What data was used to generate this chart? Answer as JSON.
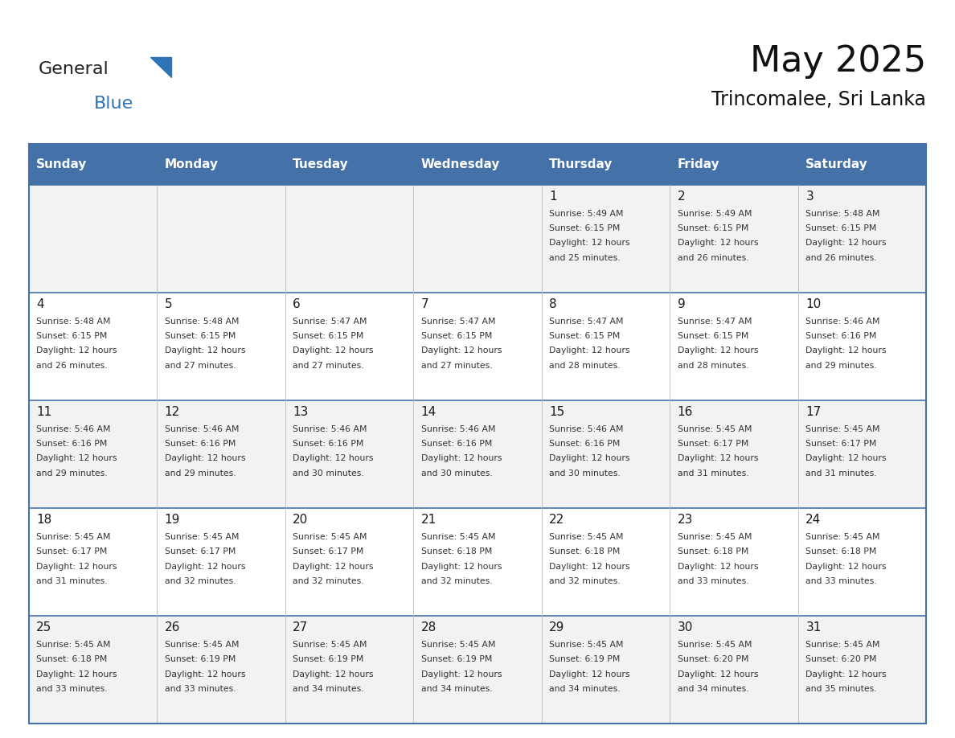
{
  "title": "May 2025",
  "subtitle": "Trincomalee, Sri Lanka",
  "days_of_week": [
    "Sunday",
    "Monday",
    "Tuesday",
    "Wednesday",
    "Thursday",
    "Friday",
    "Saturday"
  ],
  "header_bg": "#4472a8",
  "header_text": "#ffffff",
  "cell_bg_odd": "#f2f2f2",
  "cell_bg_even": "#ffffff",
  "cell_text": "#333333",
  "day_num_color": "#1a1a1a",
  "divider_color": "#4472a8",
  "logo_general_color": "#222222",
  "logo_blue_color": "#2e75b6",
  "calendar_data": [
    {
      "day": 1,
      "col": 4,
      "row": 0,
      "sunrise": "5:49 AM",
      "sunset": "6:15 PM",
      "daylight": "12 hours and 25 minutes."
    },
    {
      "day": 2,
      "col": 5,
      "row": 0,
      "sunrise": "5:49 AM",
      "sunset": "6:15 PM",
      "daylight": "12 hours and 26 minutes."
    },
    {
      "day": 3,
      "col": 6,
      "row": 0,
      "sunrise": "5:48 AM",
      "sunset": "6:15 PM",
      "daylight": "12 hours and 26 minutes."
    },
    {
      "day": 4,
      "col": 0,
      "row": 1,
      "sunrise": "5:48 AM",
      "sunset": "6:15 PM",
      "daylight": "12 hours and 26 minutes."
    },
    {
      "day": 5,
      "col": 1,
      "row": 1,
      "sunrise": "5:48 AM",
      "sunset": "6:15 PM",
      "daylight": "12 hours and 27 minutes."
    },
    {
      "day": 6,
      "col": 2,
      "row": 1,
      "sunrise": "5:47 AM",
      "sunset": "6:15 PM",
      "daylight": "12 hours and 27 minutes."
    },
    {
      "day": 7,
      "col": 3,
      "row": 1,
      "sunrise": "5:47 AM",
      "sunset": "6:15 PM",
      "daylight": "12 hours and 27 minutes."
    },
    {
      "day": 8,
      "col": 4,
      "row": 1,
      "sunrise": "5:47 AM",
      "sunset": "6:15 PM",
      "daylight": "12 hours and 28 minutes."
    },
    {
      "day": 9,
      "col": 5,
      "row": 1,
      "sunrise": "5:47 AM",
      "sunset": "6:15 PM",
      "daylight": "12 hours and 28 minutes."
    },
    {
      "day": 10,
      "col": 6,
      "row": 1,
      "sunrise": "5:46 AM",
      "sunset": "6:16 PM",
      "daylight": "12 hours and 29 minutes."
    },
    {
      "day": 11,
      "col": 0,
      "row": 2,
      "sunrise": "5:46 AM",
      "sunset": "6:16 PM",
      "daylight": "12 hours and 29 minutes."
    },
    {
      "day": 12,
      "col": 1,
      "row": 2,
      "sunrise": "5:46 AM",
      "sunset": "6:16 PM",
      "daylight": "12 hours and 29 minutes."
    },
    {
      "day": 13,
      "col": 2,
      "row": 2,
      "sunrise": "5:46 AM",
      "sunset": "6:16 PM",
      "daylight": "12 hours and 30 minutes."
    },
    {
      "day": 14,
      "col": 3,
      "row": 2,
      "sunrise": "5:46 AM",
      "sunset": "6:16 PM",
      "daylight": "12 hours and 30 minutes."
    },
    {
      "day": 15,
      "col": 4,
      "row": 2,
      "sunrise": "5:46 AM",
      "sunset": "6:16 PM",
      "daylight": "12 hours and 30 minutes."
    },
    {
      "day": 16,
      "col": 5,
      "row": 2,
      "sunrise": "5:45 AM",
      "sunset": "6:17 PM",
      "daylight": "12 hours and 31 minutes."
    },
    {
      "day": 17,
      "col": 6,
      "row": 2,
      "sunrise": "5:45 AM",
      "sunset": "6:17 PM",
      "daylight": "12 hours and 31 minutes."
    },
    {
      "day": 18,
      "col": 0,
      "row": 3,
      "sunrise": "5:45 AM",
      "sunset": "6:17 PM",
      "daylight": "12 hours and 31 minutes."
    },
    {
      "day": 19,
      "col": 1,
      "row": 3,
      "sunrise": "5:45 AM",
      "sunset": "6:17 PM",
      "daylight": "12 hours and 32 minutes."
    },
    {
      "day": 20,
      "col": 2,
      "row": 3,
      "sunrise": "5:45 AM",
      "sunset": "6:17 PM",
      "daylight": "12 hours and 32 minutes."
    },
    {
      "day": 21,
      "col": 3,
      "row": 3,
      "sunrise": "5:45 AM",
      "sunset": "6:18 PM",
      "daylight": "12 hours and 32 minutes."
    },
    {
      "day": 22,
      "col": 4,
      "row": 3,
      "sunrise": "5:45 AM",
      "sunset": "6:18 PM",
      "daylight": "12 hours and 32 minutes."
    },
    {
      "day": 23,
      "col": 5,
      "row": 3,
      "sunrise": "5:45 AM",
      "sunset": "6:18 PM",
      "daylight": "12 hours and 33 minutes."
    },
    {
      "day": 24,
      "col": 6,
      "row": 3,
      "sunrise": "5:45 AM",
      "sunset": "6:18 PM",
      "daylight": "12 hours and 33 minutes."
    },
    {
      "day": 25,
      "col": 0,
      "row": 4,
      "sunrise": "5:45 AM",
      "sunset": "6:18 PM",
      "daylight": "12 hours and 33 minutes."
    },
    {
      "day": 26,
      "col": 1,
      "row": 4,
      "sunrise": "5:45 AM",
      "sunset": "6:19 PM",
      "daylight": "12 hours and 33 minutes."
    },
    {
      "day": 27,
      "col": 2,
      "row": 4,
      "sunrise": "5:45 AM",
      "sunset": "6:19 PM",
      "daylight": "12 hours and 34 minutes."
    },
    {
      "day": 28,
      "col": 3,
      "row": 4,
      "sunrise": "5:45 AM",
      "sunset": "6:19 PM",
      "daylight": "12 hours and 34 minutes."
    },
    {
      "day": 29,
      "col": 4,
      "row": 4,
      "sunrise": "5:45 AM",
      "sunset": "6:19 PM",
      "daylight": "12 hours and 34 minutes."
    },
    {
      "day": 30,
      "col": 5,
      "row": 4,
      "sunrise": "5:45 AM",
      "sunset": "6:20 PM",
      "daylight": "12 hours and 34 minutes."
    },
    {
      "day": 31,
      "col": 6,
      "row": 4,
      "sunrise": "5:45 AM",
      "sunset": "6:20 PM",
      "daylight": "12 hours and 35 minutes."
    }
  ]
}
